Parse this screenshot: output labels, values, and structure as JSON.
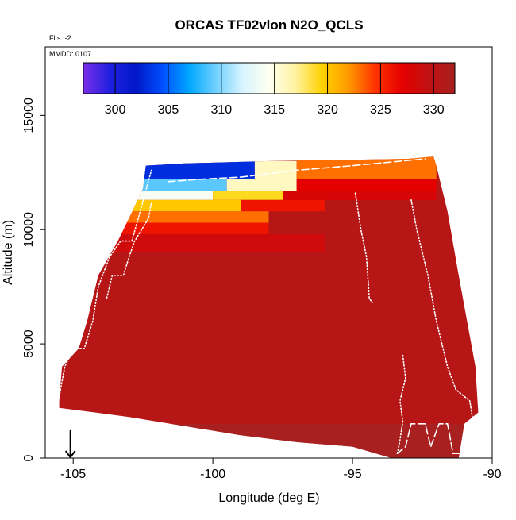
{
  "chart_data": {
    "type": "heatmap",
    "title": "ORCAS TF02vlon N2O_QCLS",
    "subtitle_left": "Flts: -2",
    "inset_label": "MMDD: 0107",
    "xlabel": "Longitude (deg E)",
    "ylabel": "Altitude (m)",
    "xlim": [
      -106,
      -90
    ],
    "ylim": [
      0,
      18000
    ],
    "x_ticks": [
      -105,
      -100,
      -95,
      -90
    ],
    "y_ticks": [
      0,
      5000,
      10000,
      15000
    ],
    "x_tick_labels": [
      "-105",
      "-100",
      "-95",
      "-90"
    ],
    "y_tick_labels": [
      "0",
      "5000",
      "10000",
      "15000"
    ],
    "colorbar": {
      "range": [
        297,
        332
      ],
      "ticks": [
        300,
        305,
        310,
        315,
        320,
        325,
        330
      ],
      "tick_labels": [
        "300",
        "305",
        "310",
        "315",
        "320",
        "325",
        "330"
      ],
      "colors": [
        "#7a2ee8",
        "#2020e0",
        "#0018c8",
        "#0050ff",
        "#00a8ff",
        "#70d0ff",
        "#d8f4ff",
        "#fffff0",
        "#fff3a0",
        "#ffd200",
        "#ff9900",
        "#ff3300",
        "#e50000",
        "#c01010",
        "#a82020"
      ]
    },
    "domain_outline": [
      [
        -105.5,
        2500
      ],
      [
        -105.4,
        4000
      ],
      [
        -104.8,
        4800
      ],
      [
        -104.5,
        6000
      ],
      [
        -104.1,
        8000
      ],
      [
        -103.4,
        9500
      ],
      [
        -103,
        10500
      ],
      [
        -102.5,
        11800
      ],
      [
        -102.4,
        12800
      ],
      [
        -101,
        12900
      ],
      [
        -98,
        13000
      ],
      [
        -93,
        13100
      ],
      [
        -92.1,
        13200
      ],
      [
        -92,
        12800
      ],
      [
        -91.6,
        10800
      ],
      [
        -91.2,
        8000
      ],
      [
        -90.9,
        6000
      ],
      [
        -90.6,
        4000
      ],
      [
        -90.5,
        2000
      ],
      [
        -91,
        1500
      ],
      [
        -91.2,
        0
      ],
      [
        -93.6,
        0
      ],
      [
        -95,
        500
      ],
      [
        -97,
        700
      ],
      [
        -99,
        1000
      ],
      [
        -101,
        1400
      ],
      [
        -103,
        1800
      ],
      [
        -105.5,
        2200
      ]
    ],
    "field_bands": [
      {
        "alt_min": 12200,
        "alt_max": 13000,
        "lon_min": -102.5,
        "lon_max": -98.5,
        "value": 303
      },
      {
        "alt_min": 12200,
        "alt_max": 13000,
        "lon_min": -98.5,
        "lon_max": -97,
        "value": 316
      },
      {
        "alt_min": 12200,
        "alt_max": 13200,
        "lon_min": -97,
        "lon_max": -92,
        "value": 323
      },
      {
        "alt_min": 11700,
        "alt_max": 12200,
        "lon_min": -102.7,
        "lon_max": -99.5,
        "value": 309
      },
      {
        "alt_min": 11700,
        "alt_max": 12200,
        "lon_min": -99.5,
        "lon_max": -97,
        "value": 316
      },
      {
        "alt_min": 11700,
        "alt_max": 12200,
        "lon_min": -97,
        "lon_max": -92,
        "value": 327
      },
      {
        "alt_min": 11300,
        "alt_max": 11700,
        "lon_min": -102.8,
        "lon_max": -100,
        "value": 314
      },
      {
        "alt_min": 11300,
        "alt_max": 11700,
        "lon_min": -100,
        "lon_max": -97.5,
        "value": 319
      },
      {
        "alt_min": 11300,
        "alt_max": 11700,
        "lon_min": -97.5,
        "lon_max": -92,
        "value": 328
      },
      {
        "alt_min": 10800,
        "alt_max": 11300,
        "lon_min": -103,
        "lon_max": -99,
        "value": 320
      },
      {
        "alt_min": 10800,
        "alt_max": 11300,
        "lon_min": -99,
        "lon_max": -96,
        "value": 326
      },
      {
        "alt_min": 10300,
        "alt_max": 10800,
        "lon_min": -103.2,
        "lon_max": -98,
        "value": 323
      },
      {
        "alt_min": 9800,
        "alt_max": 10300,
        "lon_min": -103.4,
        "lon_max": -98,
        "value": 326
      },
      {
        "alt_min": 9000,
        "alt_max": 9800,
        "lon_min": -103.8,
        "lon_max": -96,
        "value": 328.5
      }
    ],
    "background_value": 330.5,
    "surface_value": 332,
    "flight_tracks": [
      {
        "points": [
          [
            -105.5,
            2700
          ],
          [
            -105.3,
            4000
          ],
          [
            -105,
            4800
          ],
          [
            -104.6,
            4800
          ],
          [
            -104.3,
            6000
          ],
          [
            -104.1,
            7500
          ],
          [
            -103.7,
            8800
          ],
          [
            -103.3,
            9500
          ],
          [
            -102.9,
            9500
          ],
          [
            -102.6,
            10800
          ],
          [
            -102.4,
            11700
          ],
          [
            -102.2,
            12600
          ]
        ],
        "style": "dotted"
      },
      {
        "points": [
          [
            -103.8,
            7000
          ],
          [
            -103.6,
            8000
          ],
          [
            -103.2,
            8000
          ],
          [
            -103,
            8800
          ],
          [
            -102.8,
            9500
          ],
          [
            -102.3,
            10500
          ],
          [
            -102.2,
            11200
          ]
        ],
        "style": "dotted"
      },
      {
        "points": [
          [
            -101.6,
            12100
          ],
          [
            -100.5,
            12200
          ],
          [
            -99,
            12300
          ],
          [
            -97,
            12600
          ],
          [
            -95,
            12800
          ],
          [
            -92.4,
            13100
          ]
        ],
        "style": "dashed"
      },
      {
        "points": [
          [
            -94.9,
            11600
          ],
          [
            -94.7,
            10000
          ],
          [
            -94.5,
            8800
          ],
          [
            -94.4,
            7000
          ],
          [
            -94.3,
            6800
          ]
        ],
        "style": "dotted"
      },
      {
        "points": [
          [
            -92.9,
            11300
          ],
          [
            -92.7,
            10000
          ],
          [
            -92.3,
            8000
          ],
          [
            -92,
            6000
          ],
          [
            -91.6,
            4000
          ],
          [
            -91.3,
            3000
          ],
          [
            -90.8,
            2500
          ],
          [
            -90.7,
            1700
          ]
        ],
        "style": "dotted"
      },
      {
        "points": [
          [
            -93.2,
            4500
          ],
          [
            -93.1,
            3500
          ],
          [
            -93.3,
            2500
          ],
          [
            -93.2,
            1600
          ],
          [
            -93.3,
            800
          ],
          [
            -93.4,
            150
          ]
        ],
        "style": "dotted"
      },
      {
        "points": [
          [
            -93.4,
            200
          ],
          [
            -93.1,
            500
          ],
          [
            -92.9,
            1500
          ],
          [
            -92.4,
            1500
          ],
          [
            -92.2,
            500
          ],
          [
            -91.9,
            1500
          ],
          [
            -91.6,
            1500
          ],
          [
            -91.4,
            200
          ],
          [
            -91.1,
            200
          ]
        ],
        "style": "dashed"
      }
    ],
    "arrow_marker": {
      "lon": -105.1,
      "alt_top": 700,
      "alt_bottom": 0
    }
  }
}
